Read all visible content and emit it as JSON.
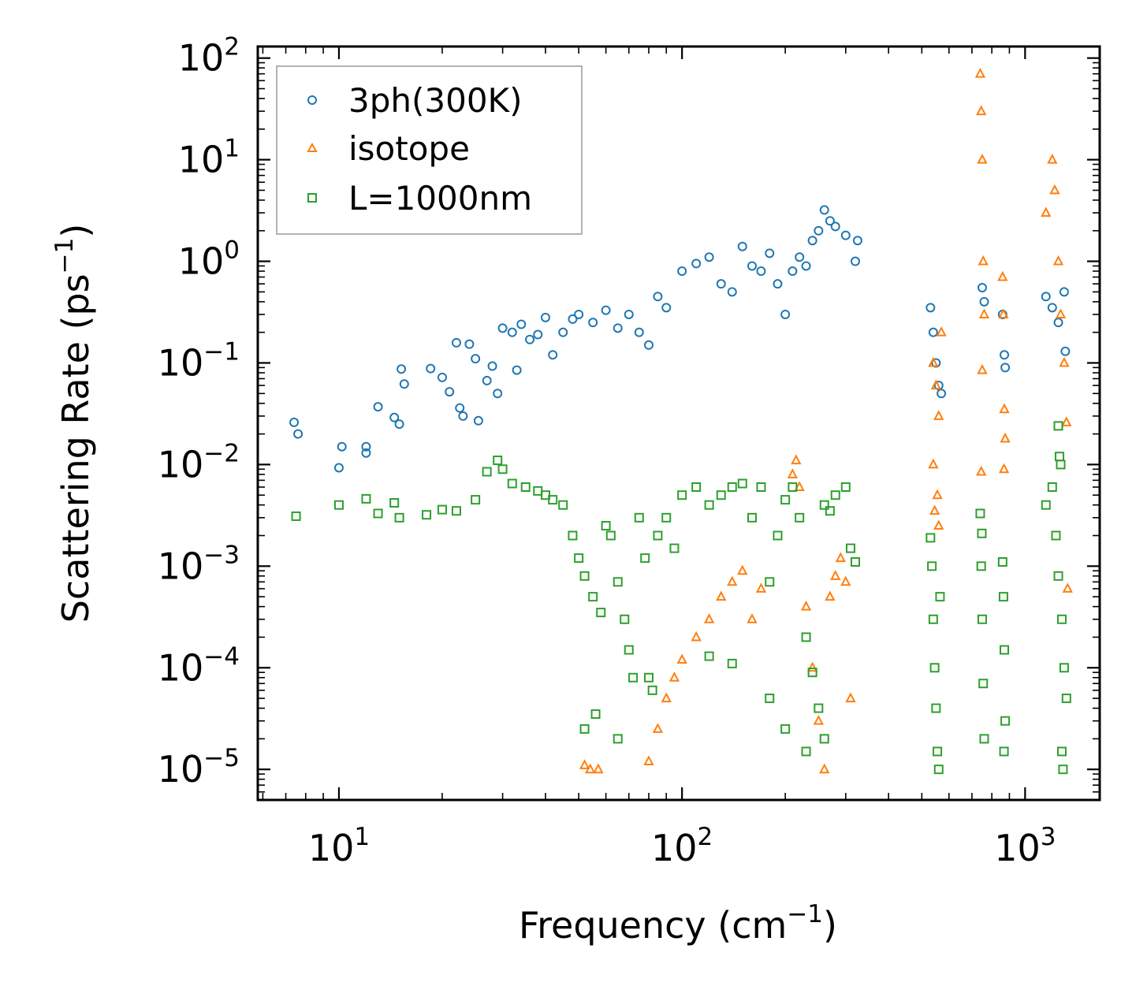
{
  "chart_data": {
    "type": "scatter",
    "xscale": "log",
    "yscale": "log",
    "xlabel": "Frequency (cm",
    "xlabel_sup": "−1",
    "xlabel_end": ")",
    "ylabel": "Scattering Rate (ps",
    "ylabel_sup": "−1",
    "ylabel_end": ")",
    "xlim": [
      5.8,
      1650
    ],
    "ylim": [
      5e-06,
      130
    ],
    "xticks": [
      {
        "value": 10,
        "base": "10",
        "exp": "1"
      },
      {
        "value": 100,
        "base": "10",
        "exp": "2"
      },
      {
        "value": 1000,
        "base": "10",
        "exp": "3"
      }
    ],
    "yticks": [
      {
        "value": 1e-05,
        "base": "10",
        "exp": "−5"
      },
      {
        "value": 0.0001,
        "base": "10",
        "exp": "−4"
      },
      {
        "value": 0.001,
        "base": "10",
        "exp": "−3"
      },
      {
        "value": 0.01,
        "base": "10",
        "exp": "−2"
      },
      {
        "value": 0.1,
        "base": "10",
        "exp": "−1"
      },
      {
        "value": 1,
        "base": "10",
        "exp": "0"
      },
      {
        "value": 10,
        "base": "10",
        "exp": "1"
      },
      {
        "value": 100,
        "base": "10",
        "exp": "2"
      }
    ],
    "legend_position": "top-left",
    "series": [
      {
        "name": "3ph(300K)",
        "marker": "circle",
        "color": "#1f77b4",
        "points": [
          [
            7.4,
            0.026
          ],
          [
            7.6,
            0.02
          ],
          [
            10,
            0.0093
          ],
          [
            10.2,
            0.015
          ],
          [
            12,
            0.015
          ],
          [
            12,
            0.013
          ],
          [
            13,
            0.037
          ],
          [
            14.5,
            0.029
          ],
          [
            15,
            0.025
          ],
          [
            15.2,
            0.087
          ],
          [
            15.5,
            0.062
          ],
          [
            18.5,
            0.088
          ],
          [
            20,
            0.072
          ],
          [
            21,
            0.052
          ],
          [
            22,
            0.158
          ],
          [
            22.5,
            0.036
          ],
          [
            23,
            0.03
          ],
          [
            24,
            0.153
          ],
          [
            25,
            0.11
          ],
          [
            25.5,
            0.027
          ],
          [
            27,
            0.067
          ],
          [
            28,
            0.093
          ],
          [
            29,
            0.05
          ],
          [
            30,
            0.22
          ],
          [
            32,
            0.2
          ],
          [
            33,
            0.085
          ],
          [
            34,
            0.24
          ],
          [
            36,
            0.17
          ],
          [
            38,
            0.19
          ],
          [
            40,
            0.28
          ],
          [
            42,
            0.12
          ],
          [
            45,
            0.2
          ],
          [
            48,
            0.27
          ],
          [
            50,
            0.3
          ],
          [
            55,
            0.25
          ],
          [
            60,
            0.33
          ],
          [
            65,
            0.22
          ],
          [
            70,
            0.3
          ],
          [
            75,
            0.2
          ],
          [
            80,
            0.15
          ],
          [
            85,
            0.45
          ],
          [
            90,
            0.35
          ],
          [
            100,
            0.8
          ],
          [
            110,
            0.95
          ],
          [
            120,
            1.1
          ],
          [
            130,
            0.6
          ],
          [
            140,
            0.5
          ],
          [
            150,
            1.4
          ],
          [
            160,
            0.9
          ],
          [
            170,
            0.8
          ],
          [
            180,
            1.2
          ],
          [
            190,
            0.6
          ],
          [
            200,
            0.3
          ],
          [
            210,
            0.8
          ],
          [
            220,
            1.1
          ],
          [
            230,
            0.9
          ],
          [
            240,
            1.6
          ],
          [
            250,
            2.0
          ],
          [
            260,
            3.2
          ],
          [
            270,
            2.5
          ],
          [
            280,
            2.2
          ],
          [
            300,
            1.8
          ],
          [
            320,
            1.0
          ],
          [
            325,
            1.6
          ],
          [
            530,
            0.35
          ],
          [
            540,
            0.2
          ],
          [
            550,
            0.1
          ],
          [
            560,
            0.06
          ],
          [
            570,
            0.05
          ],
          [
            750,
            0.55
          ],
          [
            760,
            0.4
          ],
          [
            860,
            0.3
          ],
          [
            870,
            0.12
          ],
          [
            875,
            0.09
          ],
          [
            1150,
            0.45
          ],
          [
            1200,
            0.35
          ],
          [
            1250,
            0.25
          ],
          [
            1300,
            0.5
          ],
          [
            1310,
            0.13
          ]
        ]
      },
      {
        "name": "isotope",
        "marker": "triangle",
        "color": "#ff7f0e",
        "points": [
          [
            52,
            1.1e-05
          ],
          [
            54,
            1e-05
          ],
          [
            57,
            1e-05
          ],
          [
            80,
            1.2e-05
          ],
          [
            85,
            2.5e-05
          ],
          [
            90,
            5e-05
          ],
          [
            95,
            8e-05
          ],
          [
            100,
            0.00012
          ],
          [
            110,
            0.0002
          ],
          [
            120,
            0.0003
          ],
          [
            130,
            0.0005
          ],
          [
            140,
            0.0007
          ],
          [
            150,
            0.0009
          ],
          [
            160,
            0.0003
          ],
          [
            170,
            0.0006
          ],
          [
            210,
            0.008
          ],
          [
            215,
            0.011
          ],
          [
            220,
            0.006
          ],
          [
            230,
            0.0004
          ],
          [
            240,
            0.0001
          ],
          [
            250,
            3e-05
          ],
          [
            260,
            1e-05
          ],
          [
            270,
            0.0005
          ],
          [
            280,
            0.0008
          ],
          [
            290,
            0.0012
          ],
          [
            300,
            0.0007
          ],
          [
            310,
            5e-05
          ],
          [
            540,
            0.1
          ],
          [
            550,
            0.06
          ],
          [
            560,
            0.03
          ],
          [
            570,
            0.2
          ],
          [
            540,
            0.01
          ],
          [
            555,
            0.005
          ],
          [
            560,
            0.0025
          ],
          [
            545,
            0.0035
          ],
          [
            740,
            70
          ],
          [
            745,
            30
          ],
          [
            750,
            10
          ],
          [
            755,
            1
          ],
          [
            760,
            0.3
          ],
          [
            750,
            0.085
          ],
          [
            745,
            0.0085
          ],
          [
            860,
            0.7
          ],
          [
            865,
            0.3
          ],
          [
            870,
            0.035
          ],
          [
            875,
            0.018
          ],
          [
            868,
            0.009
          ],
          [
            1150,
            3
          ],
          [
            1200,
            10
          ],
          [
            1220,
            5
          ],
          [
            1250,
            1
          ],
          [
            1270,
            0.3
          ],
          [
            1300,
            0.1
          ],
          [
            1320,
            0.026
          ],
          [
            1330,
            0.0006
          ]
        ]
      },
      {
        "name": "L=1000nm",
        "marker": "square",
        "color": "#2ca02c",
        "points": [
          [
            7.5,
            0.0031
          ],
          [
            10,
            0.004
          ],
          [
            12,
            0.0046
          ],
          [
            13,
            0.0033
          ],
          [
            14.5,
            0.0042
          ],
          [
            15,
            0.003
          ],
          [
            18,
            0.0032
          ],
          [
            20,
            0.0036
          ],
          [
            22,
            0.0035
          ],
          [
            25,
            0.0045
          ],
          [
            27,
            0.0085
          ],
          [
            29,
            0.011
          ],
          [
            30,
            0.009
          ],
          [
            32,
            0.0065
          ],
          [
            35,
            0.006
          ],
          [
            38,
            0.0055
          ],
          [
            40,
            0.005
          ],
          [
            42,
            0.0045
          ],
          [
            45,
            0.004
          ],
          [
            48,
            0.002
          ],
          [
            50,
            0.0012
          ],
          [
            52,
            0.0008
          ],
          [
            55,
            0.0005
          ],
          [
            58,
            0.00035
          ],
          [
            60,
            0.0025
          ],
          [
            62,
            0.002
          ],
          [
            65,
            0.0007
          ],
          [
            68,
            0.0003
          ],
          [
            70,
            0.00015
          ],
          [
            72,
            8e-05
          ],
          [
            52,
            2.5e-05
          ],
          [
            56,
            3.5e-05
          ],
          [
            65,
            2e-05
          ],
          [
            75,
            0.003
          ],
          [
            78,
            0.0012
          ],
          [
            80,
            8e-05
          ],
          [
            82,
            6e-05
          ],
          [
            85,
            0.002
          ],
          [
            90,
            0.003
          ],
          [
            95,
            0.0015
          ],
          [
            100,
            0.005
          ],
          [
            110,
            0.006
          ],
          [
            120,
            0.004
          ],
          [
            130,
            0.005
          ],
          [
            140,
            0.006
          ],
          [
            150,
            0.0065
          ],
          [
            160,
            0.003
          ],
          [
            170,
            0.006
          ],
          [
            180,
            0.0007
          ],
          [
            190,
            0.002
          ],
          [
            200,
            0.0045
          ],
          [
            210,
            0.006
          ],
          [
            220,
            0.003
          ],
          [
            230,
            0.0002
          ],
          [
            240,
            9e-05
          ],
          [
            250,
            4e-05
          ],
          [
            260,
            0.004
          ],
          [
            270,
            0.0035
          ],
          [
            280,
            0.005
          ],
          [
            300,
            0.006
          ],
          [
            310,
            0.0015
          ],
          [
            320,
            0.0011
          ],
          [
            120,
            0.00013
          ],
          [
            140,
            0.00011
          ],
          [
            200,
            2.5e-05
          ],
          [
            230,
            1.5e-05
          ],
          [
            260,
            2e-05
          ],
          [
            180,
            5e-05
          ],
          [
            530,
            0.0019
          ],
          [
            535,
            0.001
          ],
          [
            540,
            0.0003
          ],
          [
            545,
            0.0001
          ],
          [
            550,
            4e-05
          ],
          [
            555,
            1.5e-05
          ],
          [
            560,
            1e-05
          ],
          [
            565,
            0.0005
          ],
          [
            740,
            0.0033
          ],
          [
            745,
            0.001
          ],
          [
            750,
            0.0003
          ],
          [
            755,
            7e-05
          ],
          [
            760,
            2e-05
          ],
          [
            748,
            0.0021
          ],
          [
            860,
            0.0011
          ],
          [
            865,
            0.0005
          ],
          [
            870,
            0.00015
          ],
          [
            875,
            3e-05
          ],
          [
            868,
            1.5e-05
          ],
          [
            1150,
            0.004
          ],
          [
            1200,
            0.006
          ],
          [
            1230,
            0.002
          ],
          [
            1250,
            0.0008
          ],
          [
            1280,
            0.0003
          ],
          [
            1300,
            0.0001
          ],
          [
            1320,
            5e-05
          ],
          [
            1250,
            0.024
          ],
          [
            1260,
            0.012
          ],
          [
            1270,
            0.01
          ],
          [
            1280,
            1.5e-05
          ],
          [
            1290,
            1e-05
          ]
        ]
      }
    ]
  }
}
